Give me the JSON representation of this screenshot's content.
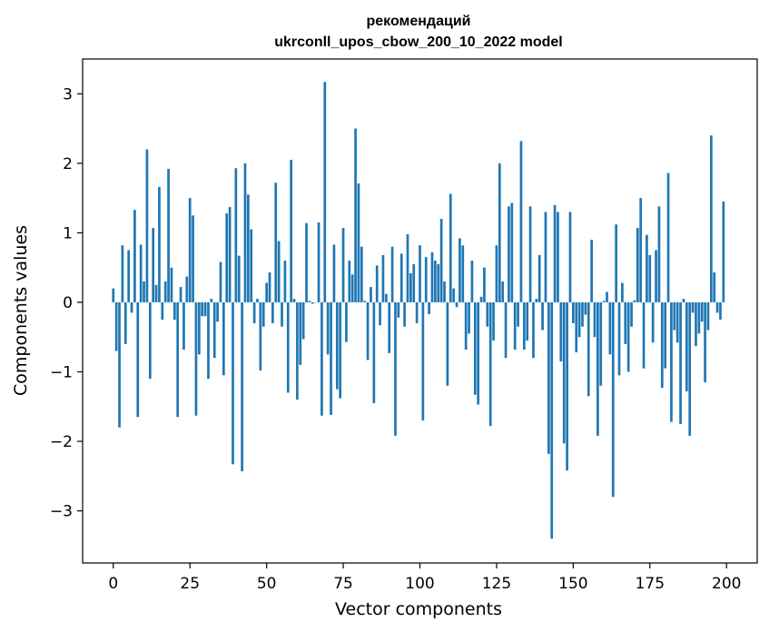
{
  "chart_data": {
    "type": "bar",
    "title": "рекомендаций",
    "subtitle": "ukrconll_upos_cbow_200_10_2022 model",
    "xlabel": "Vector components",
    "ylabel": "Components values",
    "xlim": [
      -10,
      210
    ],
    "ylim": [
      -3.75,
      3.5
    ],
    "xticks": [
      0,
      25,
      50,
      75,
      100,
      125,
      150,
      175,
      200
    ],
    "yticks": [
      -3,
      -2,
      -1,
      0,
      1,
      2,
      3
    ],
    "ytick_labels": [
      "−3",
      "−2",
      "−1",
      "0",
      "1",
      "2",
      "3"
    ],
    "grid": false,
    "bar_color": "#1f77b4",
    "x": [
      0,
      1,
      2,
      3,
      4,
      5,
      6,
      7,
      8,
      9,
      10,
      11,
      12,
      13,
      14,
      15,
      16,
      17,
      18,
      19,
      20,
      21,
      22,
      23,
      24,
      25,
      26,
      27,
      28,
      29,
      30,
      31,
      32,
      33,
      34,
      35,
      36,
      37,
      38,
      39,
      40,
      41,
      42,
      43,
      44,
      45,
      46,
      47,
      48,
      49,
      50,
      51,
      52,
      53,
      54,
      55,
      56,
      57,
      58,
      59,
      60,
      61,
      62,
      63,
      64,
      65,
      66,
      67,
      68,
      69,
      70,
      71,
      72,
      73,
      74,
      75,
      76,
      77,
      78,
      79,
      80,
      81,
      82,
      83,
      84,
      85,
      86,
      87,
      88,
      89,
      90,
      91,
      92,
      93,
      94,
      95,
      96,
      97,
      98,
      99,
      100,
      101,
      102,
      103,
      104,
      105,
      106,
      107,
      108,
      109,
      110,
      111,
      112,
      113,
      114,
      115,
      116,
      117,
      118,
      119,
      120,
      121,
      122,
      123,
      124,
      125,
      126,
      127,
      128,
      129,
      130,
      131,
      132,
      133,
      134,
      135,
      136,
      137,
      138,
      139,
      140,
      141,
      142,
      143,
      144,
      145,
      146,
      147,
      148,
      149,
      150,
      151,
      152,
      153,
      154,
      155,
      156,
      157,
      158,
      159,
      160,
      161,
      162,
      163,
      164,
      165,
      166,
      167,
      168,
      169,
      170,
      171,
      172,
      173,
      174,
      175,
      176,
      177,
      178,
      179,
      180,
      181,
      182,
      183,
      184,
      185,
      186,
      187,
      188,
      189,
      190,
      191,
      192,
      193,
      194,
      195,
      196,
      197,
      198,
      199
    ],
    "values": [
      0.2,
      -0.7,
      -1.8,
      0.82,
      -0.6,
      0.75,
      -0.15,
      1.33,
      -1.65,
      0.83,
      0.3,
      2.2,
      -1.1,
      1.07,
      0.25,
      1.66,
      -0.25,
      0.3,
      1.92,
      0.5,
      -0.25,
      -1.65,
      0.22,
      -0.68,
      0.37,
      1.5,
      1.25,
      -1.63,
      -0.75,
      -0.2,
      -0.2,
      -1.1,
      0.05,
      -0.8,
      -0.28,
      0.58,
      -1.05,
      1.28,
      1.37,
      -2.33,
      1.93,
      0.67,
      -2.43,
      2.0,
      1.55,
      1.05,
      -0.3,
      0.05,
      -0.98,
      -0.35,
      0.28,
      0.43,
      -0.3,
      1.72,
      0.88,
      -0.35,
      0.6,
      -1.3,
      2.05,
      0.05,
      -1.4,
      -0.9,
      -0.53,
      1.14,
      0.02,
      -0.02,
      0.0,
      1.15,
      -1.63,
      3.17,
      -0.75,
      -1.62,
      0.83,
      -1.25,
      -1.38,
      1.07,
      -0.57,
      0.6,
      0.4,
      2.5,
      1.71,
      0.8,
      0.02,
      -0.83,
      0.22,
      -1.45,
      0.53,
      -0.33,
      0.68,
      0.12,
      -0.73,
      0.8,
      -1.92,
      -0.22,
      0.7,
      -0.35,
      0.98,
      0.42,
      0.55,
      -0.3,
      0.82,
      -1.7,
      0.65,
      -0.17,
      0.72,
      0.6,
      0.55,
      1.2,
      0.3,
      -1.2,
      1.56,
      0.2,
      -0.07,
      0.92,
      0.82,
      -0.68,
      -0.45,
      0.6,
      -1.33,
      -1.47,
      0.08,
      0.5,
      -0.35,
      -1.78,
      -0.55,
      0.82,
      2.0,
      0.3,
      -0.8,
      1.38,
      1.43,
      -0.68,
      -0.35,
      2.32,
      -0.68,
      -0.55,
      1.38,
      -0.8,
      0.05,
      0.68,
      -0.4,
      1.3,
      -2.18,
      -3.4,
      1.4,
      1.3,
      -0.85,
      -2.03,
      -2.42,
      1.3,
      -0.3,
      -0.72,
      -0.5,
      -0.35,
      -0.18,
      -1.35,
      0.9,
      -0.5,
      -1.92,
      -1.2,
      0.02,
      0.15,
      -0.75,
      -2.8,
      1.12,
      -1.05,
      0.28,
      -0.6,
      -1.0,
      -0.35,
      0.03,
      1.07,
      1.5,
      -0.95,
      0.97,
      0.68,
      -0.58,
      0.75,
      1.38,
      -1.23,
      -0.95,
      1.86,
      -1.72,
      -0.4,
      -0.58,
      -1.75,
      0.05,
      -1.28,
      -1.92,
      -0.15,
      -0.63,
      -0.45,
      -0.28,
      -1.15,
      -0.4,
      2.4,
      0.43,
      -0.15,
      -0.25,
      1.45
    ]
  }
}
